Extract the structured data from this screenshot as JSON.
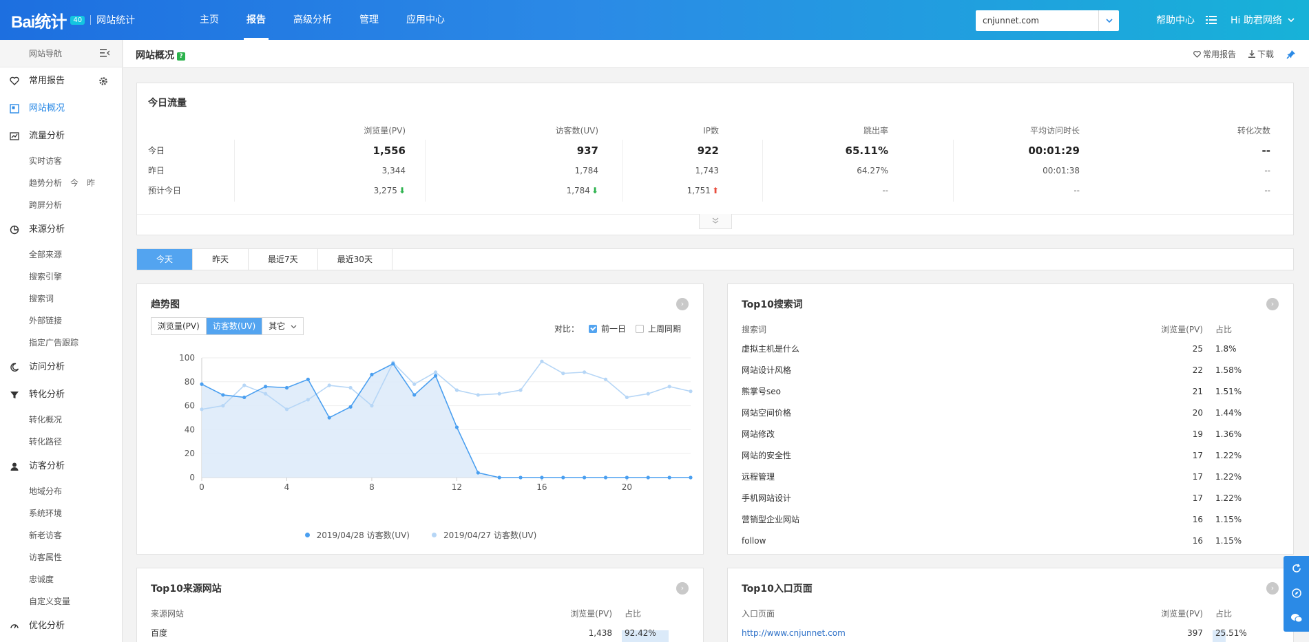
{
  "brand": {
    "logo": "Bai统计",
    "badge": "40",
    "sub": "网站统计"
  },
  "nav": [
    "主页",
    "报告",
    "高级分析",
    "管理",
    "应用中心"
  ],
  "nav_active": 1,
  "site": "cnjunnet.com",
  "header": {
    "help": "帮助中心",
    "greeting": "Hi  助君网络"
  },
  "sidebar": {
    "nav_title": "网站导航",
    "groups": [
      {
        "label": "常用报告",
        "icon": "heart-icon",
        "active": false,
        "subs": []
      },
      {
        "label": "网站概况",
        "icon": "overview-icon",
        "active": true,
        "subs": []
      },
      {
        "label": "流量分析",
        "icon": "chart-icon",
        "active": false,
        "subs": [
          "实时访客",
          "趋势分析",
          "跨屏分析"
        ]
      },
      {
        "label": "来源分析",
        "icon": "pie-icon",
        "active": false,
        "subs": [
          "全部来源",
          "搜索引擎",
          "搜索词",
          "外部链接",
          "指定广告跟踪"
        ]
      },
      {
        "label": "访问分析",
        "icon": "moon-icon",
        "active": false,
        "subs": []
      },
      {
        "label": "转化分析",
        "icon": "funnel-icon",
        "active": false,
        "subs": [
          "转化概况",
          "转化路径"
        ]
      },
      {
        "label": "访客分析",
        "icon": "user-icon",
        "active": false,
        "subs": [
          "地域分布",
          "系统环境",
          "新老访客",
          "访客属性",
          "忠诚度",
          "自定义变量"
        ]
      },
      {
        "label": "优化分析",
        "icon": "gauge-icon",
        "active": false,
        "subs": []
      }
    ],
    "trend_extra": [
      "今",
      "昨"
    ]
  },
  "page": {
    "title": "网站概况",
    "help": "?",
    "actions": [
      "常用报告",
      "下载"
    ]
  },
  "today_flow": {
    "title": "今日流量",
    "columns": [
      "浏览量(PV)",
      "访客数(UV)",
      "IP数",
      "跳出率",
      "平均访问时长",
      "转化次数"
    ],
    "rows": [
      {
        "label": "今日",
        "values": [
          "1,556",
          "937",
          "922",
          "65.11%",
          "00:01:29",
          "--"
        ]
      },
      {
        "label": "昨日",
        "values": [
          "3,344",
          "1,784",
          "1,743",
          "64.27%",
          "00:01:38",
          "--"
        ]
      },
      {
        "label": "预计今日",
        "values": [
          "3,275",
          "1,784",
          "1,751",
          "--",
          "--",
          "--"
        ],
        "trends": [
          "down",
          "down",
          "up",
          "",
          "",
          ""
        ]
      }
    ]
  },
  "date_tabs": [
    "今天",
    "昨天",
    "最近7天",
    "最近30天"
  ],
  "date_tab_active": 0,
  "trend": {
    "title": "趋势图",
    "metric_tabs": [
      "浏览量(PV)",
      "访客数(UV)",
      "其它"
    ],
    "metric_active": 1,
    "compare_label": "对比：",
    "compare_opts": [
      {
        "label": "前一日",
        "checked": true
      },
      {
        "label": "上周同期",
        "checked": false
      }
    ]
  },
  "chart_data": {
    "type": "line",
    "x": [
      0,
      1,
      2,
      3,
      4,
      5,
      6,
      7,
      8,
      9,
      10,
      11,
      12,
      13,
      14,
      15,
      16,
      17,
      18,
      19,
      20,
      21,
      22,
      23
    ],
    "xticks": [
      0,
      4,
      8,
      12,
      16,
      20
    ],
    "yticks": [
      0,
      20,
      40,
      60,
      80,
      100
    ],
    "ylim": [
      0,
      100
    ],
    "series": [
      {
        "name": "2019/04/28 访客数(UV)",
        "color": "#4a9ff0",
        "values": [
          78,
          69,
          67,
          76,
          75,
          82,
          50,
          59,
          86,
          95,
          69,
          85,
          42,
          4,
          0,
          0,
          0,
          0,
          0,
          0,
          0,
          0,
          0,
          0
        ]
      },
      {
        "name": "2019/04/27 访客数(UV)",
        "color": "#b6d6f6",
        "values": [
          57,
          60,
          77,
          70,
          57,
          65,
          77,
          75,
          60,
          96,
          78,
          88,
          73,
          69,
          70,
          73,
          97,
          87,
          88,
          82,
          67,
          70,
          76,
          72
        ]
      }
    ]
  },
  "top_keywords": {
    "title": "Top10搜索词",
    "headers": [
      "搜索词",
      "浏览量(PV)",
      "占比"
    ],
    "rows": [
      [
        "虚拟主机是什么",
        "25",
        "1.8%"
      ],
      [
        "网站设计风格",
        "22",
        "1.58%"
      ],
      [
        "熊掌号seo",
        "21",
        "1.51%"
      ],
      [
        "网站空间价格",
        "20",
        "1.44%"
      ],
      [
        "网站修改",
        "19",
        "1.36%"
      ],
      [
        "网站的安全性",
        "17",
        "1.22%"
      ],
      [
        "远程管理",
        "17",
        "1.22%"
      ],
      [
        "手机网站设计",
        "17",
        "1.22%"
      ],
      [
        "营销型企业网站",
        "16",
        "1.15%"
      ],
      [
        "follow",
        "16",
        "1.15%"
      ]
    ]
  },
  "top_sources": {
    "title": "Top10来源网站",
    "headers": [
      "来源网站",
      "浏览量(PV)",
      "占比"
    ],
    "rows": [
      [
        "百度",
        "1,438",
        "92.42%"
      ]
    ],
    "bar": [
      0.9242
    ]
  },
  "top_entries": {
    "title": "Top10入口页面",
    "headers": [
      "入口页面",
      "浏览量(PV)",
      "占比"
    ],
    "rows": [
      [
        "http://www.cnjunnet.com",
        "397",
        "25.51%"
      ]
    ],
    "bar": [
      0.2551
    ]
  }
}
